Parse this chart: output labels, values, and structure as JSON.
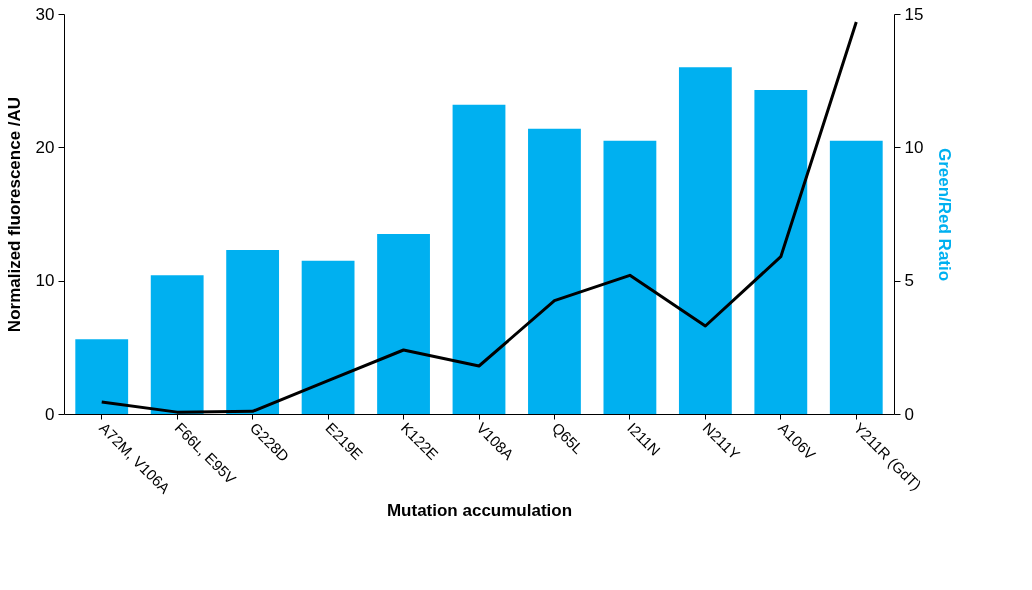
{
  "chart_data": {
    "type": "bar",
    "xlabel": "Mutation accumulation",
    "ylabel": "Normalized fluorescence /AU",
    "y2label": "Green/Red Ratio",
    "categories": [
      "A72M, V106A",
      "F66L, E95V",
      "G228D",
      "E219E",
      "K122E",
      "V108A",
      "Q65L",
      "I211N",
      "N211Y",
      "A106V",
      "Y211R (GdT)"
    ],
    "series": [
      {
        "color": "#00b0f0",
        "values": [
          5.6,
          10.4,
          12.3,
          11.5,
          13.5,
          23.2,
          21.4,
          20.5,
          26.0,
          24.3,
          20.5
        ]
      },
      {
        "type": "line",
        "axis": "y2",
        "color": "#000000",
        "values": [
          0.45,
          0.07,
          0.1,
          1.25,
          2.4,
          1.8,
          4.25,
          5.2,
          3.3,
          5.9,
          14.7
        ]
      }
    ],
    "ylim": [
      0,
      30
    ],
    "yticks": [
      0,
      10,
      20,
      30
    ],
    "y2lim": [
      0,
      15
    ],
    "y2ticks": [
      0,
      5,
      10,
      15
    ],
    "grid": false,
    "marker": "none",
    "line_style": "solid"
  }
}
